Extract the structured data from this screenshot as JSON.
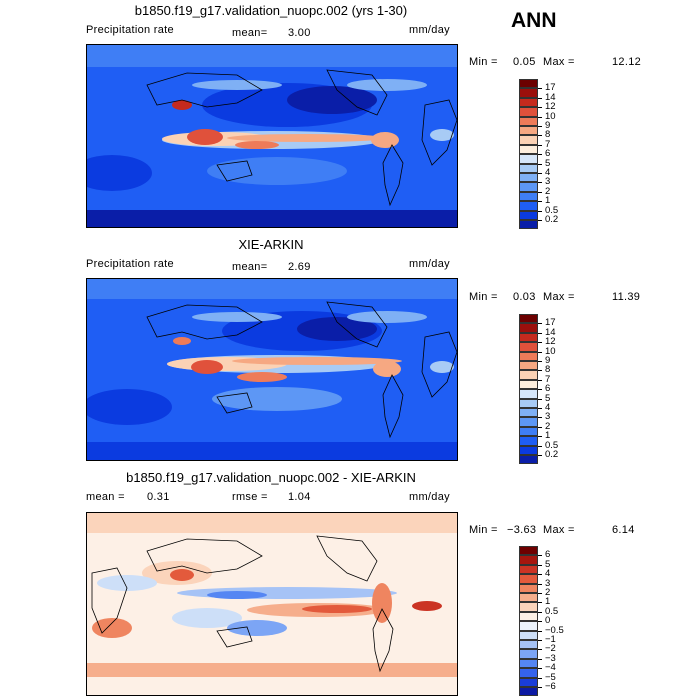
{
  "season": "ANN",
  "colors": {
    "abs_scale": [
      "#08006e",
      "#0a1ea8",
      "#0b3be0",
      "#1f5ef4",
      "#3f7ef5",
      "#5d97f5",
      "#7fb0f5",
      "#a8cbf5",
      "#d6e6f9",
      "#fdeedd",
      "#fbd2b5",
      "#f6a882",
      "#ee7b59",
      "#e0513b",
      "#c52a1e",
      "#9b0f0c",
      "#6c0000"
    ],
    "diff_scale": [
      "#06006a",
      "#0c1aa3",
      "#1a3dd8",
      "#3563ec",
      "#5586f3",
      "#7ca5f5",
      "#a6c3f6",
      "#cddff8",
      "#ecf3fc",
      "#fdf0e6",
      "#fbd4bb",
      "#f6ae8c",
      "#ef8560",
      "#e35a3c",
      "#cb3424",
      "#a6160e",
      "#6e0000"
    ]
  },
  "panels": [
    {
      "title": "b1850.f19_g17.validation_nuopc.002 (yrs 1-30)",
      "variable": "Precipitation rate",
      "mean_label": "mean=",
      "mean_value": "3.00",
      "units": "mm/day",
      "min_label": "Min =",
      "min_value": "0.05",
      "max_label": "Max =",
      "max_value": "12.12"
    },
    {
      "title": "XIE-ARKIN",
      "variable": "Precipitation rate",
      "mean_label": "mean=",
      "mean_value": "2.69",
      "units": "mm/day",
      "min_label": "Min =",
      "min_value": "0.03",
      "max_label": "Max =",
      "max_value": "11.39"
    },
    {
      "title": "b1850.f19_g17.validation_nuopc.002 - XIE-ARKIN",
      "mean_label": "mean =",
      "mean_value": "0.31",
      "rmse_label": "rmse =",
      "rmse_value": "1.04",
      "units": "mm/day",
      "min_label": "Min =",
      "min_value": "−3.63",
      "max_label": "Max =",
      "max_value": "6.14"
    }
  ],
  "chart_data": [
    {
      "type": "heatmap",
      "title": "b1850.f19_g17.validation_nuopc.002 (yrs 1-30)",
      "variable": "Precipitation rate",
      "units": "mm/day",
      "mean": 3.0,
      "min": 0.05,
      "max": 12.12,
      "colorbar_levels": [
        "17",
        "14",
        "12",
        "10",
        "9",
        "8",
        "7",
        "6",
        "5",
        "4",
        "3",
        "2",
        "1",
        "0.5",
        "0.2"
      ]
    },
    {
      "type": "heatmap",
      "title": "XIE-ARKIN",
      "variable": "Precipitation rate",
      "units": "mm/day",
      "mean": 2.69,
      "min": 0.03,
      "max": 11.39,
      "colorbar_levels": [
        "17",
        "14",
        "12",
        "10",
        "9",
        "8",
        "7",
        "6",
        "5",
        "4",
        "3",
        "2",
        "1",
        "0.5",
        "0.2"
      ]
    },
    {
      "type": "heatmap",
      "title": "b1850.f19_g17.validation_nuopc.002 - XIE-ARKIN",
      "units": "mm/day",
      "mean": 0.31,
      "rmse": 1.04,
      "min": -3.63,
      "max": 6.14,
      "colorbar_levels": [
        "6",
        "5",
        "4",
        "3",
        "2",
        "1",
        "0.5",
        "0",
        "−0.5",
        "−1",
        "−2",
        "−3",
        "−4",
        "−5",
        "−6"
      ]
    }
  ]
}
